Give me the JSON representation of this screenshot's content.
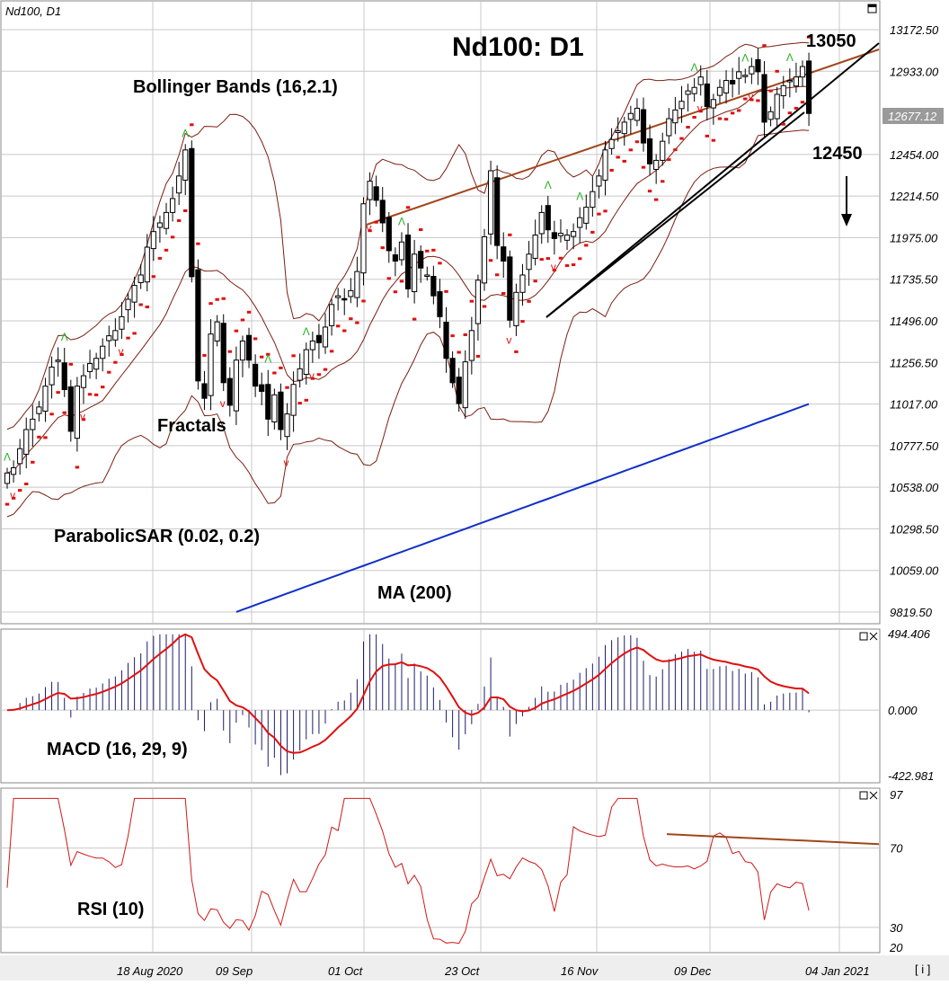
{
  "window": {
    "symbol_label": "Nd100, D1",
    "headline": "Nd100: D1"
  },
  "annotations": {
    "bollinger": "Bollinger Bands (16,2.1)",
    "fractals": "Fractals",
    "parabolic": "ParabolicSAR (0.02, 0.2)",
    "ma": "MA (200)",
    "macd": "MACD (16, 29, 9)",
    "rsi": "RSI (10)",
    "resistance": "13050",
    "support": "12450",
    "arrow_down_icon": "down-arrow-icon"
  },
  "colors": {
    "background": "#ffffff",
    "border": "#8a8a8a",
    "grid": "#c8c8c8",
    "candle": "#000000",
    "bollinger": "#7a1f12",
    "ma200": "#1030c8",
    "sar": "#e01010",
    "fractal_up": "#20b020",
    "fractal_down": "#e01010",
    "trend_red": "#a0461a",
    "trend_black": "#000000",
    "macd_hist": "#1c1c6e",
    "macd_signal": "#e01010",
    "rsi_line": "#d01818",
    "rsi_trend": "#a0461a",
    "current_price_bg": "#9a9a9a"
  },
  "price_axis": {
    "ticks": [
      "13172.50",
      "12933.00",
      "12454.00",
      "12214.50",
      "11975.00",
      "11735.50",
      "11496.00",
      "11256.50",
      "11017.00",
      "10777.50",
      "10538.00",
      "10298.50",
      "10059.00",
      "9819.50"
    ],
    "current": "12677.12"
  },
  "date_axis": [
    "18 Aug 2020",
    "09 Sep",
    "01 Oct",
    "23 Oct",
    "16 Nov",
    "09 Dec",
    "04 Jan 2021"
  ],
  "macd_axis": [
    "494.406",
    "0.000",
    "-422.981"
  ],
  "rsi_axis": [
    "97",
    "70",
    "30",
    "20"
  ],
  "footer_btn": "[ i ]",
  "chart_data": [
    {
      "type": "candlestick",
      "title": "Nd100: D1",
      "ylim": [
        9819.5,
        13172.5
      ],
      "series": [
        {
          "name": "Bollinger Bands (16,2.1)"
        },
        {
          "name": "ParabolicSAR (0.02, 0.2)"
        },
        {
          "name": "MA (200)"
        },
        {
          "name": "Fractals"
        }
      ],
      "levels": [
        13050,
        12450
      ],
      "last_close": 12677.12
    },
    {
      "type": "bar",
      "title": "MACD (16, 29, 9)",
      "ylim": [
        -422.981,
        494.406
      ],
      "series": [
        {
          "name": "histogram"
        },
        {
          "name": "signal"
        }
      ]
    },
    {
      "type": "line",
      "title": "RSI (10)",
      "ylim": [
        20,
        97
      ],
      "levels": [
        30,
        70
      ],
      "series": [
        {
          "name": "RSI"
        }
      ]
    }
  ]
}
